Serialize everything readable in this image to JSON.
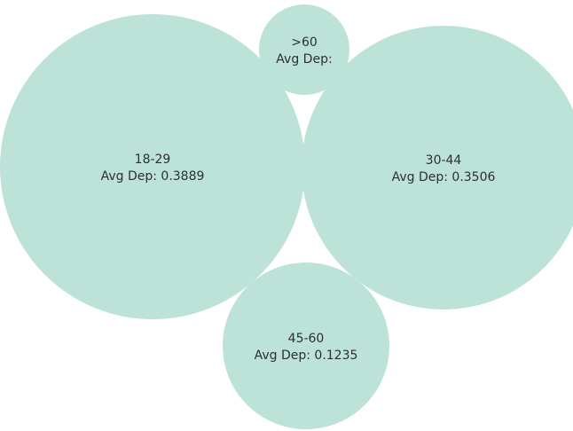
{
  "chart_data": {
    "type": "bubble",
    "measure_label": "Avg Dep:",
    "bubble_color": "#bde3d9",
    "bubbles": [
      {
        "category": "18-29",
        "value": 0.3889,
        "value_text": "0.3889"
      },
      {
        "category": "30-44",
        "value": 0.3506,
        "value_text": "0.3506"
      },
      {
        "category": "45-60",
        "value": 0.1235,
        "value_text": "0.1235"
      },
      {
        "category": ">60",
        "value": null,
        "value_text": ""
      }
    ]
  }
}
